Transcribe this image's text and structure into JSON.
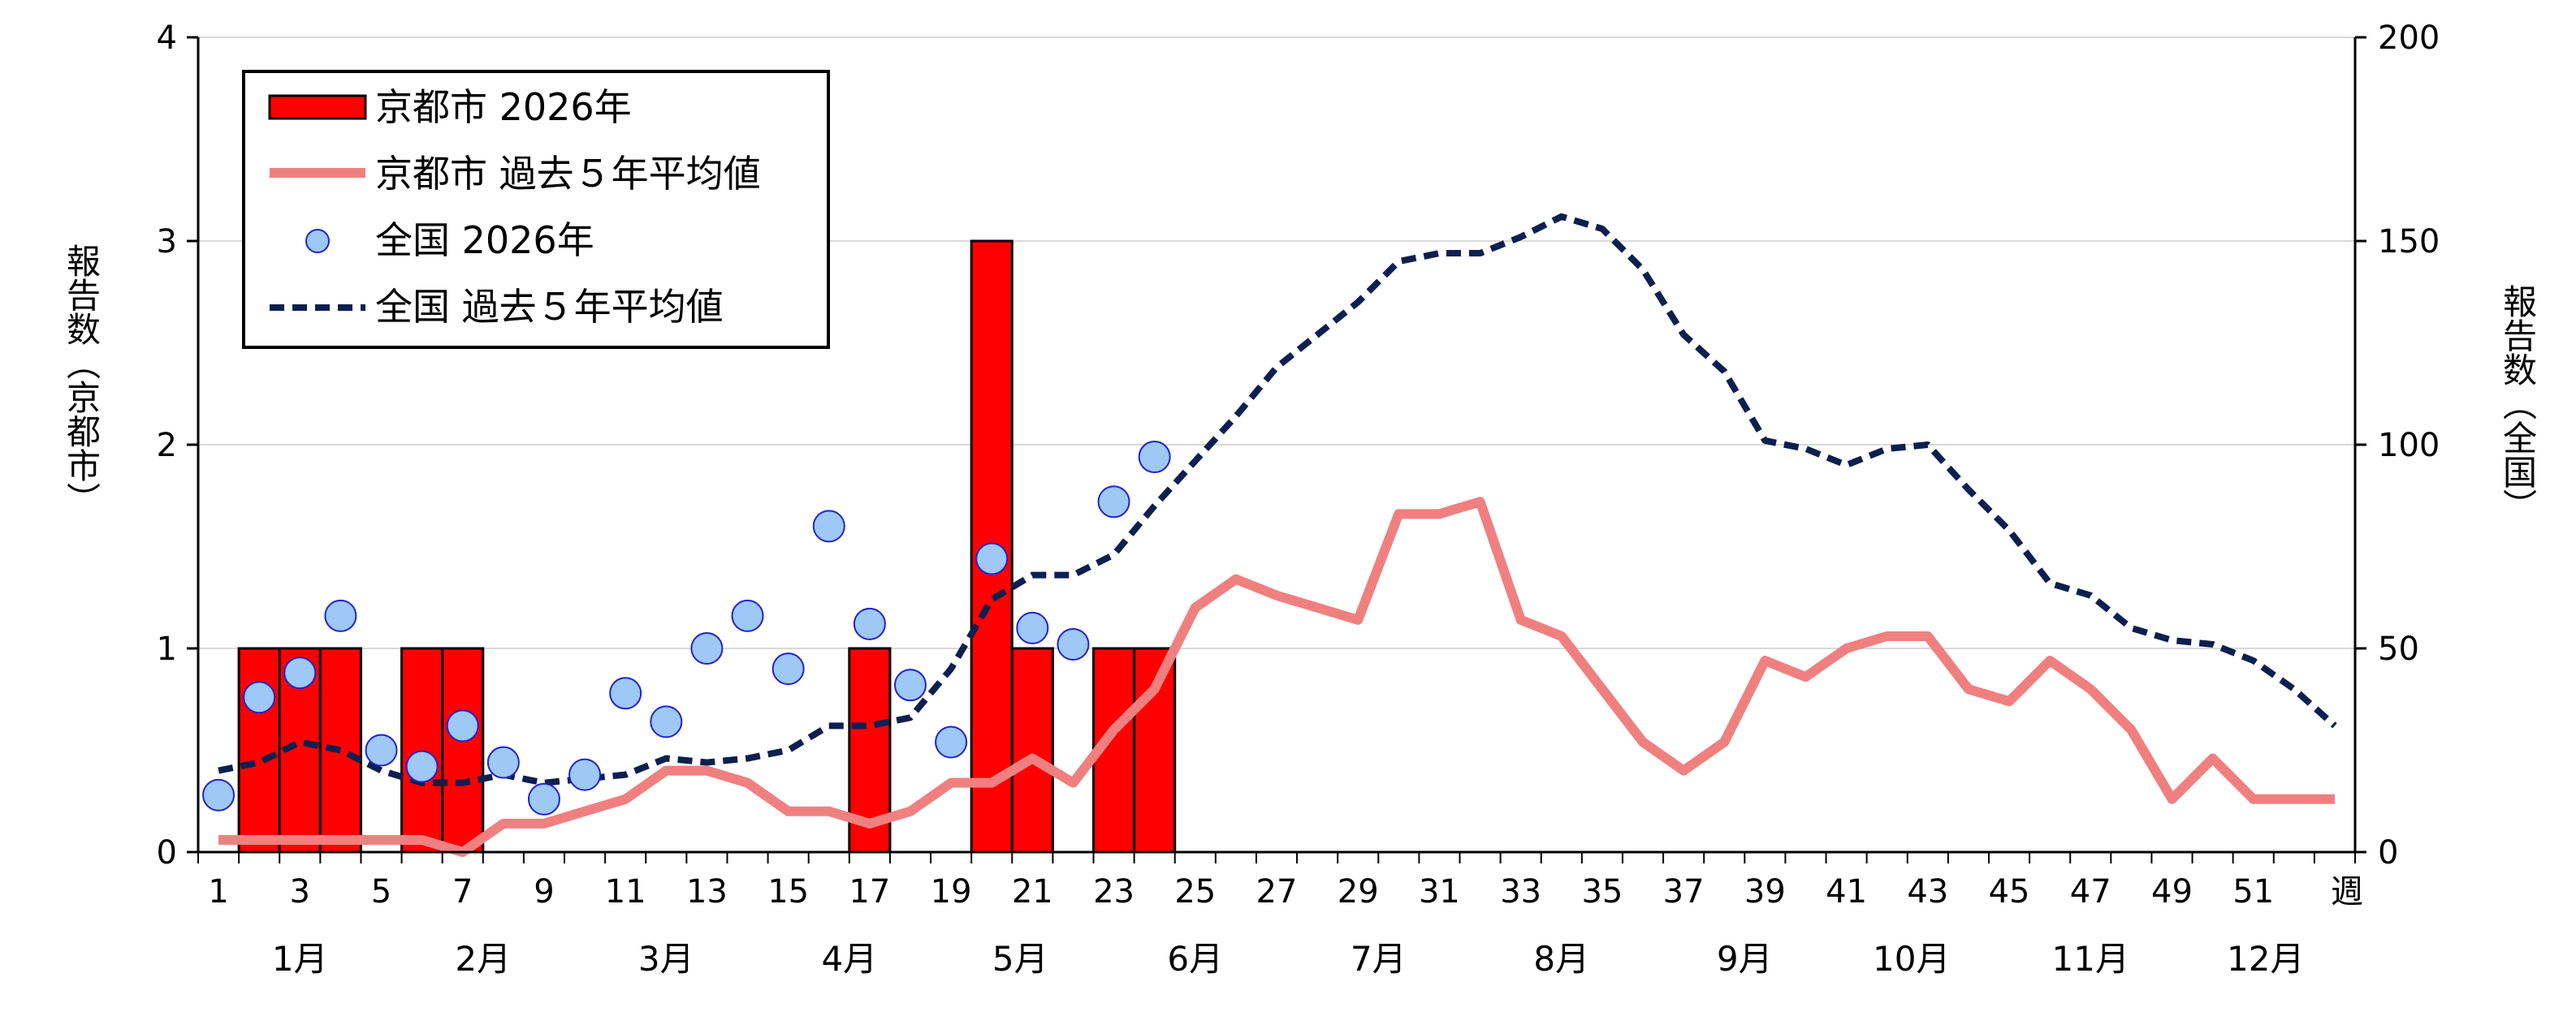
{
  "chart_data": {
    "type": "bar",
    "y_left_label": "報告数（京都市）",
    "y_right_label": "報告数（全国）",
    "x_unit_label": "週",
    "y_left_range": [
      0,
      4
    ],
    "y_left_ticks": [
      "0",
      "1",
      "2",
      "3",
      "4"
    ],
    "y_right_range": [
      0,
      200
    ],
    "y_right_ticks": [
      "0",
      "50",
      "100",
      "150",
      "200"
    ],
    "x_ticks": [
      "1",
      "3",
      "5",
      "7",
      "9",
      "11",
      "13",
      "15",
      "17",
      "19",
      "21",
      "23",
      "25",
      "27",
      "29",
      "31",
      "33",
      "35",
      "37",
      "39",
      "41",
      "43",
      "45",
      "47",
      "49",
      "51"
    ],
    "months": [
      {
        "label": "1月",
        "week": 3
      },
      {
        "label": "2月",
        "week": 7.5
      },
      {
        "label": "3月",
        "week": 12
      },
      {
        "label": "4月",
        "week": 16.5
      },
      {
        "label": "5月",
        "week": 20.7
      },
      {
        "label": "6月",
        "week": 25
      },
      {
        "label": "7月",
        "week": 29.5
      },
      {
        "label": "8月",
        "week": 34
      },
      {
        "label": "9月",
        "week": 38.5
      },
      {
        "label": "10月",
        "week": 42.6
      },
      {
        "label": "11月",
        "week": 47
      },
      {
        "label": "12月",
        "week": 51.3
      }
    ],
    "grid": true,
    "legend_position": "top-left",
    "series": [
      {
        "name": "京都市 2026年",
        "kind": "bar",
        "axis": "left",
        "color": "#ff0000",
        "weeks": [
          2,
          3,
          4,
          6,
          7,
          17,
          20,
          21,
          23,
          24
        ],
        "values": [
          1,
          1,
          1,
          1,
          1,
          1,
          3,
          1,
          1,
          1
        ]
      },
      {
        "name": "京都市 過去５年平均値",
        "kind": "line",
        "axis": "left",
        "color": "#f08080",
        "weeks": [
          1,
          2,
          3,
          4,
          5,
          6,
          7,
          8,
          9,
          10,
          11,
          12,
          13,
          14,
          15,
          16,
          17,
          18,
          19,
          20,
          21,
          22,
          23,
          24,
          25,
          26,
          27,
          28,
          29,
          30,
          31,
          32,
          33,
          34,
          35,
          36,
          37,
          38,
          39,
          40,
          41,
          42,
          43,
          44,
          45,
          46,
          47,
          48,
          49,
          50,
          51,
          52,
          53
        ],
        "values": [
          0.06,
          0.06,
          0.06,
          0.06,
          0.06,
          0.06,
          0.0,
          0.14,
          0.14,
          0.2,
          0.26,
          0.4,
          0.4,
          0.34,
          0.2,
          0.2,
          0.14,
          0.2,
          0.34,
          0.34,
          0.46,
          0.34,
          0.6,
          0.8,
          1.2,
          1.34,
          1.26,
          1.2,
          1.14,
          1.66,
          1.66,
          1.72,
          1.14,
          1.06,
          0.8,
          0.54,
          0.4,
          0.54,
          0.94,
          0.86,
          1.0,
          1.06,
          1.06,
          0.8,
          0.74,
          0.94,
          0.8,
          0.6,
          0.26,
          0.46,
          0.26,
          0.26,
          0.26
        ]
      },
      {
        "name": "全国 2026年",
        "kind": "scatter",
        "axis": "right",
        "color": "#9ec8f5",
        "weeks": [
          1,
          2,
          3,
          4,
          5,
          6,
          7,
          8,
          9,
          10,
          11,
          12,
          13,
          14,
          15,
          16,
          17,
          18,
          19,
          20,
          21,
          22,
          23,
          24
        ],
        "values": [
          14,
          38,
          44,
          58,
          25,
          21,
          31,
          22,
          13,
          19,
          39,
          32,
          50,
          58,
          45,
          80,
          56,
          41,
          27,
          72,
          55,
          51,
          86,
          97
        ]
      },
      {
        "name": "全国 過去５年平均値",
        "kind": "line",
        "axis": "right",
        "color": "#0d1f4f",
        "weeks": [
          1,
          2,
          3,
          4,
          5,
          6,
          7,
          8,
          9,
          10,
          11,
          12,
          13,
          14,
          15,
          16,
          17,
          18,
          19,
          20,
          21,
          22,
          23,
          24,
          25,
          26,
          27,
          28,
          29,
          30,
          31,
          32,
          33,
          34,
          35,
          36,
          37,
          38,
          39,
          40,
          41,
          42,
          43,
          44,
          45,
          46,
          47,
          48,
          49,
          50,
          51,
          52,
          53
        ],
        "values": [
          20,
          22,
          27,
          25,
          20,
          17,
          17,
          19,
          17,
          18,
          19,
          23,
          22,
          23,
          25,
          31,
          31,
          33,
          45,
          62,
          68,
          68,
          73,
          85,
          96,
          107,
          119,
          127,
          135,
          145,
          147,
          147,
          151,
          156,
          153,
          143,
          127,
          118,
          101,
          99,
          95,
          99,
          100,
          89,
          79,
          66,
          63,
          55,
          52,
          51,
          47,
          40,
          31
        ]
      }
    ]
  }
}
